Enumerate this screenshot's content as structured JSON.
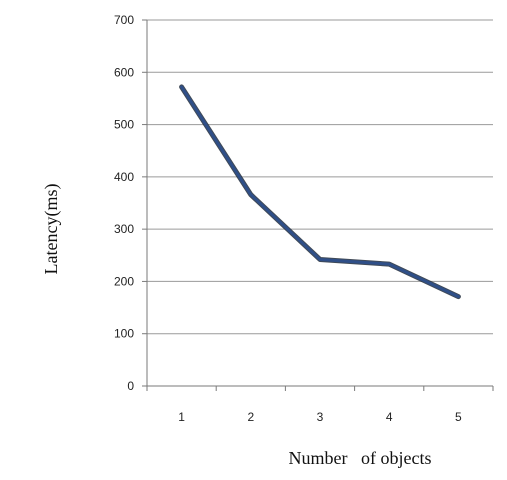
{
  "chart_data": {
    "type": "line",
    "title": "",
    "xlabel": "Number   of objects",
    "ylabel": "Latency(ms)",
    "categories": [
      "1",
      "2",
      "3",
      "4",
      "5"
    ],
    "series": [
      {
        "values": [
          572,
          366,
          242,
          233,
          171
        ]
      }
    ],
    "ylim": [
      0,
      700
    ],
    "yticks": [
      0,
      100,
      200,
      300,
      400,
      500,
      600,
      700
    ],
    "ytick_labels": [
      "0",
      "100",
      "200",
      "300",
      "400",
      "500",
      "600",
      "700"
    ],
    "grid": "horizontal",
    "legend": "none",
    "colors": {
      "line": "#2f4f88",
      "line_shadow": "#1e2a3a",
      "grid": "#9a9a9a",
      "axis": "#7a7a7a",
      "text": "#222222"
    }
  }
}
